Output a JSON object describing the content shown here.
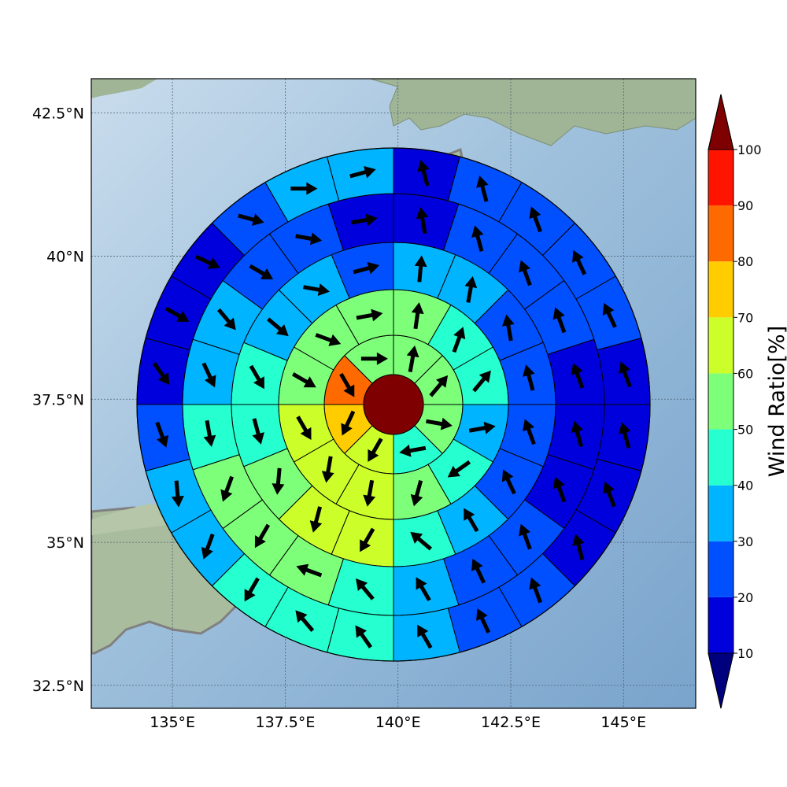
{
  "chart_data": {
    "type": "heatmap",
    "projection": "polar-grid on geographic map",
    "center": {
      "lon": 139.8,
      "lat": 37.55
    },
    "x_axis": {
      "ticks": [
        135,
        137.5,
        140,
        142.5,
        145
      ],
      "tick_labels": [
        "135°E",
        "137.5°E",
        "140°E",
        "142.5°E",
        "145°E"
      ],
      "range": [
        133.2,
        146.6
      ]
    },
    "y_axis": {
      "ticks": [
        32.5,
        35,
        37.5,
        40,
        42.5
      ],
      "tick_labels": [
        "32.5°N",
        "35°N",
        "37.5°N",
        "40°N",
        "42.5°N"
      ],
      "range": [
        32.1,
        43.1
      ]
    },
    "grid": true,
    "center_value": 100,
    "rings": [
      {
        "ring": 1,
        "values": [
          50,
          55,
          50,
          45,
          65,
          70,
          80,
          55
        ],
        "arrows_deg": [
          10,
          40,
          100,
          -100,
          -150,
          -155,
          150,
          90
        ]
      },
      {
        "ring": 2,
        "values": [
          55,
          45,
          40,
          35,
          45,
          55,
          65,
          65,
          60,
          55,
          50,
          55
        ],
        "arrows_deg": [
          8,
          20,
          40,
          80,
          -125,
          -165,
          -170,
          -170,
          150,
          120,
          110,
          80
        ]
      },
      {
        "ring": 3,
        "values": [
          35,
          30,
          25,
          20,
          20,
          25,
          35,
          45,
          65,
          60,
          50,
          45,
          40,
          35,
          35,
          25
        ],
        "arrows_deg": [
          5,
          10,
          -10,
          -15,
          -20,
          -25,
          -30,
          -50,
          -150,
          -165,
          -175,
          165,
          150,
          130,
          100,
          75
        ]
      },
      {
        "ring": 4,
        "values": [
          15,
          20,
          25,
          20,
          15,
          10,
          15,
          20,
          25,
          30,
          40,
          50,
          55,
          50,
          45,
          35,
          30,
          25,
          20,
          15
        ],
        "arrows_deg": [
          -10,
          -15,
          -20,
          -20,
          -20,
          -15,
          -20,
          -20,
          -25,
          -30,
          -40,
          -70,
          -150,
          -160,
          170,
          155,
          140,
          120,
          100,
          80
        ]
      },
      {
        "ring": 5,
        "values": [
          10,
          20,
          25,
          25,
          20,
          10,
          15,
          10,
          10,
          20,
          25,
          30,
          40,
          45,
          40,
          35,
          30,
          25,
          15,
          10,
          15,
          25,
          30,
          30
        ],
        "arrows_deg": [
          -15,
          -15,
          -20,
          -25,
          -25,
          -20,
          -15,
          -20,
          -15,
          -20,
          -25,
          -30,
          -35,
          -40,
          -150,
          -160,
          175,
          160,
          145,
          120,
          115,
          105,
          90,
          75
        ]
      }
    ],
    "colorbar": {
      "label": "Wind Ratio[%]",
      "tick_labels": [
        "10",
        "20",
        "30",
        "40",
        "50",
        "60",
        "70",
        "80",
        "90",
        "100"
      ],
      "bounds": [
        10,
        20,
        30,
        40,
        50,
        60,
        70,
        80,
        90,
        100
      ],
      "colors": [
        "#0000dc",
        "#0050ff",
        "#00b4ff",
        "#26ffd0",
        "#7dff7a",
        "#ccff2a",
        "#ffcc00",
        "#ff6a00",
        "#ff1400"
      ],
      "under_color": "#00007f",
      "over_color": "#7f0000"
    }
  }
}
